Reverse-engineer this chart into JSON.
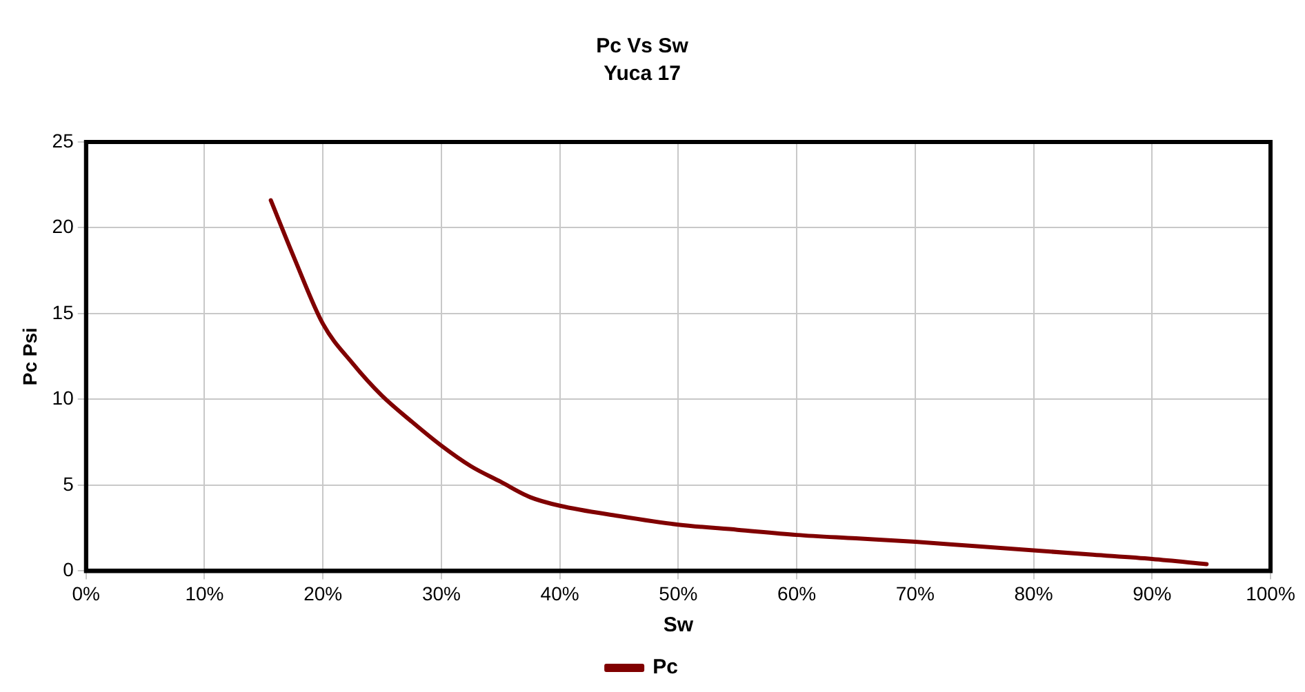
{
  "chart_data": {
    "type": "line",
    "title": "Pc Vs Sw",
    "subtitle": "Yuca 17",
    "xlabel": "Sw",
    "ylabel": "Pc Psi",
    "xlim": [
      0,
      100
    ],
    "xticks": [
      {
        "value": 0,
        "label": "0%"
      },
      {
        "value": 10,
        "label": "10%"
      },
      {
        "value": 20,
        "label": "20%"
      },
      {
        "value": 30,
        "label": "30%"
      },
      {
        "value": 40,
        "label": "40%"
      },
      {
        "value": 50,
        "label": "50%"
      },
      {
        "value": 60,
        "label": "60%"
      },
      {
        "value": 70,
        "label": "70%"
      },
      {
        "value": 80,
        "label": "80%"
      },
      {
        "value": 90,
        "label": "90%"
      },
      {
        "value": 100,
        "label": "100%"
      }
    ],
    "ylim": [
      0,
      25
    ],
    "yticks": [
      0,
      5,
      10,
      15,
      20,
      25
    ],
    "grid": true,
    "legend": "bottom",
    "marker": "none",
    "line_style": "solid",
    "series": [
      {
        "name": "Pc",
        "color": "#800000",
        "x": [
          15.6,
          17.6,
          20,
          22.5,
          25,
          27.5,
          30,
          32.5,
          35,
          37.5,
          40,
          45,
          50,
          55,
          60,
          65,
          70,
          75,
          80,
          85,
          90,
          94.6
        ],
        "values": [
          21.6,
          18.2,
          14.4,
          12.1,
          10.2,
          8.7,
          7.3,
          6.1,
          5.2,
          4.3,
          3.8,
          3.2,
          2.7,
          2.4,
          2.1,
          1.9,
          1.7,
          1.45,
          1.2,
          0.95,
          0.7,
          0.4
        ]
      }
    ]
  }
}
